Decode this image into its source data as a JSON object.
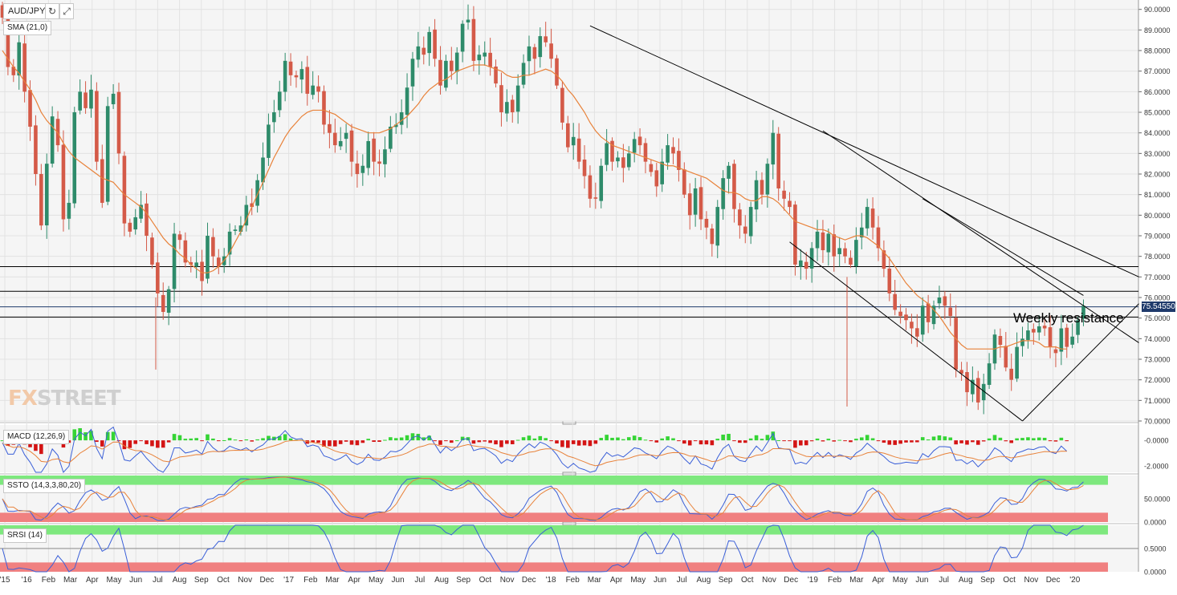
{
  "header": {
    "symbol": "AUD/JPY",
    "refresh_icon": "refresh-icon",
    "fullscreen_icon": "expand-icon"
  },
  "labels": {
    "sma": "SMA (21,0)",
    "macd": "MACD (12,26,9)",
    "ssto": "SSTO (14,3,3,80,20)",
    "srsi": "SRSI (14)"
  },
  "watermark": {
    "fx": "FX",
    "street": "STREET"
  },
  "annotation": "Weekly resistance",
  "price_tag": "75.54550",
  "colors": {
    "up": "#2e8b6a",
    "down": "#d45a48",
    "sma": "#e8823a",
    "trend": "#000000",
    "macd_line": "#3a5fd8",
    "signal_line": "#e8823a",
    "hist_up": "#35d435",
    "hist_down": "#d41414",
    "ob_band": "#7ee87e",
    "os_band": "#f08080",
    "price_tag_bg": "#1f3a6b"
  },
  "chart_data": {
    "type": "candlestick",
    "y_ticks": [
      "90.0000",
      "89.0000",
      "88.0000",
      "87.0000",
      "86.0000",
      "85.0000",
      "84.0000",
      "83.0000",
      "82.0000",
      "81.0000",
      "80.0000",
      "79.0000",
      "78.0000",
      "77.0000",
      "76.0000",
      "75.0000",
      "74.0000",
      "73.0000",
      "72.0000",
      "71.0000",
      "70.0000"
    ],
    "ylim": [
      70,
      90.3
    ],
    "x_ticks": [
      "'15",
      "'16",
      "Feb",
      "Mar",
      "Apr",
      "May",
      "Jun",
      "Jul",
      "Aug",
      "Sep",
      "Oct",
      "Nov",
      "Dec",
      "'17",
      "Feb",
      "Mar",
      "Apr",
      "May",
      "Jun",
      "Jul",
      "Aug",
      "Sep",
      "Oct",
      "Nov",
      "Dec",
      "'18",
      "Feb",
      "Mar",
      "Apr",
      "May",
      "Jun",
      "Jul",
      "Aug",
      "Sep",
      "Oct",
      "Nov",
      "Dec",
      "'19",
      "Feb",
      "Mar",
      "Apr",
      "May",
      "Jun",
      "Jul",
      "Aug",
      "Sep",
      "Oct",
      "Nov",
      "Dec",
      "'20"
    ],
    "closes": [
      89.6,
      87.2,
      86.8,
      88.4,
      86.0,
      84.3,
      82.0,
      79.5,
      82.5,
      84.8,
      83.4,
      79.8,
      80.6,
      85.0,
      86.0,
      85.2,
      86.1,
      82.6,
      80.6,
      85.3,
      85.9,
      83.0,
      79.6,
      79.2,
      79.9,
      80.5,
      79.0,
      77.6,
      76.2,
      75.3,
      76.4,
      79.1,
      78.8,
      77.7,
      77.6,
      77.7,
      76.8,
      79.0,
      78.0,
      77.5,
      78.0,
      79.2,
      79.3,
      79.5,
      80.5,
      80.4,
      81.7,
      82.8,
      84.4,
      85.0,
      86.0,
      87.5,
      86.8,
      86.7,
      87.1,
      85.9,
      86.3,
      86.0,
      84.4,
      84.0,
      83.4,
      83.6,
      84.0,
      82.6,
      82.0,
      82.4,
      83.6,
      82.6,
      82.5,
      83.2,
      84.3,
      84.4,
      85.0,
      86.2,
      87.6,
      88.2,
      87.8,
      88.9,
      87.6,
      86.3,
      87.5,
      87.0,
      87.9,
      89.3,
      89.5,
      87.5,
      87.8,
      87.9,
      87.2,
      86.4,
      85.0,
      85.5,
      85.0,
      86.3,
      87.4,
      88.2,
      87.6,
      88.7,
      88.4,
      87.6,
      86.3,
      84.5,
      83.3,
      83.8,
      82.6,
      81.9,
      80.8,
      80.8,
      82.4,
      83.5,
      82.6,
      82.8,
      82.3,
      83.0,
      83.7,
      83.4,
      82.6,
      82.1,
      81.4,
      82.6,
      83.4,
      83.0,
      82.2,
      81.0,
      80.0,
      81.3,
      79.8,
      79.4,
      78.6,
      80.4,
      81.8,
      82.4,
      80.3,
      79.5,
      79.1,
      80.4,
      81.7,
      81.0,
      82.5,
      84.0,
      81.3,
      80.8,
      80.4,
      77.6,
      77.8,
      77.4,
      78.4,
      79.2,
      78.3,
      79.1,
      78.0,
      78.4,
      78.0,
      77.6,
      78.8,
      79.4,
      80.4,
      79.4,
      78.4,
      77.4,
      76.2,
      75.4,
      75.1,
      74.9,
      74.5,
      74.1,
      75.6,
      74.8,
      75.6,
      76.0,
      75.6,
      75.1,
      72.5,
      72.3,
      71.4,
      72.0,
      70.9,
      71.8,
      72.8,
      74.2,
      73.7,
      72.6,
      72.0,
      73.6,
      74.0,
      74.4,
      74.3,
      74.6,
      74.5,
      73.6,
      73.3,
      74.5,
      73.6,
      74.1,
      74.9,
      75.6
    ],
    "sma_21": [
      88.0,
      87.6,
      87.2,
      86.9,
      86.5,
      86.1,
      85.6,
      85.0,
      84.6,
      84.3,
      84.0,
      83.5,
      83.1,
      82.8,
      82.6,
      82.4,
      82.2,
      82.0,
      81.8,
      81.7,
      81.6,
      81.3,
      81.0,
      80.8,
      80.6,
      80.4,
      80.1,
      79.7,
      79.3,
      78.9,
      78.6,
      78.4,
      78.1,
      77.9,
      77.6,
      77.4,
      77.2,
      77.2,
      77.3,
      77.5,
      77.8,
      78.2,
      78.7,
      79.2,
      79.8,
      80.4,
      81.0,
      81.6,
      82.2,
      82.8,
      83.3,
      83.8,
      84.2,
      84.5,
      84.8,
      85.0,
      85.1,
      85.1,
      85.1,
      85.0,
      84.9,
      84.7,
      84.5,
      84.3,
      84.2,
      84.1,
      84.0,
      84.0,
      84.0,
      84.1,
      84.2,
      84.4,
      84.6,
      84.8,
      85.1,
      85.4,
      85.8,
      86.1,
      86.3,
      86.5,
      86.6,
      86.8,
      87.0,
      87.1,
      87.2,
      87.3,
      87.3,
      87.3,
      87.2,
      87.1,
      87.0,
      86.8,
      86.7,
      86.7,
      86.8,
      86.8,
      86.9,
      87.0,
      87.1,
      87.0,
      86.8,
      86.5,
      86.1,
      85.8,
      85.4,
      85.0,
      84.5,
      84.1,
      83.8,
      83.6,
      83.4,
      83.3,
      83.2,
      83.1,
      83.0,
      82.9,
      82.8,
      82.7,
      82.6,
      82.5,
      82.4,
      82.4,
      82.3,
      82.2,
      82.1,
      82.0,
      81.9,
      81.8,
      81.6,
      81.4,
      81.2,
      81.1,
      81.1,
      81.0,
      80.8,
      80.7,
      80.7,
      80.9,
      80.9,
      80.8,
      80.6,
      80.3,
      80.0,
      79.7,
      79.6,
      79.5,
      79.4,
      79.3,
      79.3,
      79.2,
      79.0,
      78.9,
      78.8,
      78.9,
      79.0,
      79.0,
      78.9,
      78.7,
      78.5,
      78.2,
      77.9,
      77.5,
      77.1,
      76.7,
      76.4,
      76.1,
      75.9,
      75.7,
      75.4,
      75.1,
      74.7,
      74.3,
      74.0,
      73.7,
      73.5,
      73.5,
      73.5,
      73.5,
      73.5,
      73.5,
      73.6,
      73.6,
      73.7,
      73.8,
      73.9,
      73.9,
      73.9,
      73.8,
      73.6,
      73.6,
      73.6,
      73.5,
      73.5
    ],
    "horizontal_levels": [
      77.5,
      76.3,
      75.05
    ],
    "current_price": 75.5455,
    "macd": {
      "ylim": [
        -2.5,
        1.2
      ],
      "y_ticks": [
        "-0.0000",
        "-2.0000"
      ]
    },
    "ssto": {
      "ylim": [
        0,
        100
      ],
      "y_ticks": [
        "50.0000",
        "0.0000"
      ],
      "bands": [
        80,
        20
      ]
    },
    "srsi": {
      "ylim": [
        0,
        1
      ],
      "y_ticks": [
        "0.5000",
        "0.0000"
      ]
    }
  }
}
